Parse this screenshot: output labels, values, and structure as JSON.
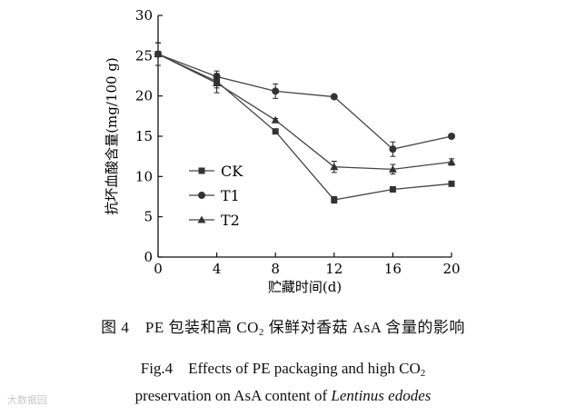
{
  "chart_data": {
    "type": "line",
    "ylabel": "抗坏血酸含量(mg/100 g)",
    "xlabel": "贮藏时间(d)",
    "x": [
      0,
      4,
      8,
      12,
      16,
      20
    ],
    "xlim": [
      0,
      20
    ],
    "ylim": [
      0,
      30
    ],
    "xticks": [
      "0",
      "4",
      "8",
      "12",
      "16",
      "20"
    ],
    "yticks": [
      "0",
      "5",
      "10",
      "15",
      "20",
      "25",
      "30"
    ],
    "legend_position": "left-middle",
    "grid": false,
    "series": [
      {
        "name": "CK",
        "marker": "square",
        "values": [
          25.2,
          21.8,
          15.6,
          7.1,
          8.4,
          9.1
        ],
        "errors": [
          1.4,
          0.8,
          0.2,
          0.4,
          0.3,
          0.2
        ]
      },
      {
        "name": "T1",
        "marker": "circle",
        "values": [
          25.2,
          22.4,
          20.6,
          19.9,
          13.4,
          15.0
        ],
        "errors": [
          1.4,
          0.7,
          0.9,
          0.2,
          0.9,
          0.2
        ]
      },
      {
        "name": "T2",
        "marker": "triangle",
        "values": [
          25.2,
          21.6,
          17.0,
          11.2,
          10.9,
          11.8
        ],
        "errors": [
          1.4,
          1.2,
          0.2,
          0.7,
          0.6,
          0.4
        ]
      }
    ]
  },
  "caption": {
    "cn_pre": "图 4　PE 包装和高 CO",
    "cn_sub": "2",
    "cn_post": " 保鲜对香菇 AsA 含量的影响",
    "en1_pre": "Fig.4　Effects of PE packaging and high CO",
    "en1_sub": "2",
    "en2_pre": "preservation on AsA content of ",
    "en2_italic": "Lentinus edodes"
  },
  "watermark": "大数据园"
}
